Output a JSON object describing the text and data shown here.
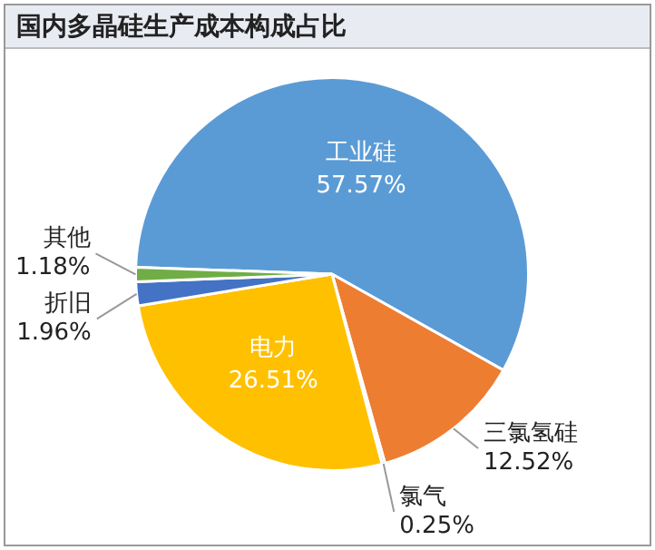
{
  "chart_data": {
    "type": "pie",
    "title": "国内多晶硅生产成本构成占比",
    "categories": [
      "工业硅",
      "三氯氢硅",
      "氯气",
      "电力",
      "折旧",
      "其他"
    ],
    "values": [
      57.57,
      12.52,
      0.25,
      26.51,
      1.96,
      1.18
    ],
    "value_labels": [
      "57.57%",
      "12.52%",
      "0.25%",
      "26.51%",
      "1.96%",
      "1.18%"
    ],
    "colors": [
      "#5b9bd5",
      "#ed7d31",
      "#a5a5a5",
      "#ffc000",
      "#4472c4",
      "#70ad47"
    ],
    "legend": false
  }
}
